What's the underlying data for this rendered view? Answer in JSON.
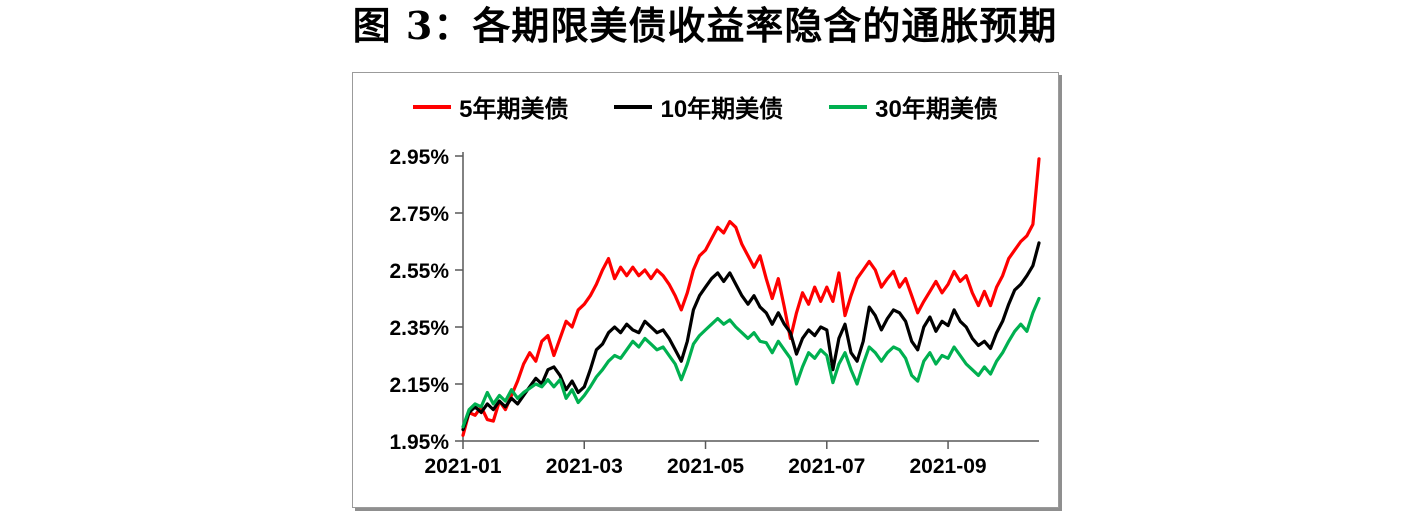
{
  "page": {
    "title": "图 3：各期限美债收益率隐含的通胀预期"
  },
  "chart_data": {
    "type": "line",
    "title": "图 3：各期限美债收益率隐含的通胀预期",
    "xlabel": "",
    "ylabel": "",
    "grid": false,
    "legend_position": "top-center",
    "axis_color": "#595959",
    "ylim": [
      1.95,
      2.95
    ],
    "y_tick_values": [
      1.95,
      2.15,
      2.35,
      2.55,
      2.75,
      2.95
    ],
    "y_tick_labels": [
      "1.95%",
      "2.15%",
      "2.35%",
      "2.55%",
      "2.75%",
      "2.95%"
    ],
    "x_months_span": 9.5,
    "x_ticks": [
      {
        "month": 0,
        "label": "2021-01"
      },
      {
        "month": 2,
        "label": "2021-03"
      },
      {
        "month": 4,
        "label": "2021-05"
      },
      {
        "month": 6,
        "label": "2021-07"
      },
      {
        "month": 8,
        "label": "2021-09"
      }
    ],
    "series": [
      {
        "id": "5y",
        "name": "5年期美债",
        "color": "#FF0000",
        "values": [
          1.97,
          2.05,
          2.04,
          2.07,
          2.025,
          2.02,
          2.09,
          2.06,
          2.11,
          2.16,
          2.22,
          2.26,
          2.23,
          2.3,
          2.32,
          2.25,
          2.31,
          2.37,
          2.35,
          2.41,
          2.43,
          2.46,
          2.5,
          2.55,
          2.59,
          2.52,
          2.56,
          2.53,
          2.56,
          2.53,
          2.55,
          2.52,
          2.55,
          2.53,
          2.5,
          2.46,
          2.41,
          2.47,
          2.55,
          2.6,
          2.62,
          2.66,
          2.7,
          2.68,
          2.72,
          2.7,
          2.64,
          2.6,
          2.56,
          2.6,
          2.52,
          2.45,
          2.52,
          2.42,
          2.31,
          2.4,
          2.47,
          2.43,
          2.49,
          2.44,
          2.49,
          2.44,
          2.54,
          2.39,
          2.46,
          2.52,
          2.55,
          2.58,
          2.55,
          2.49,
          2.52,
          2.545,
          2.49,
          2.52,
          2.46,
          2.4,
          2.44,
          2.475,
          2.51,
          2.47,
          2.5,
          2.545,
          2.51,
          2.53,
          2.47,
          2.425,
          2.475,
          2.425,
          2.49,
          2.53,
          2.59,
          2.62,
          2.65,
          2.67,
          2.71,
          2.94
        ]
      },
      {
        "id": "10y",
        "name": "10年期美债",
        "color": "#000000",
        "values": [
          1.99,
          2.05,
          2.07,
          2.05,
          2.08,
          2.06,
          2.09,
          2.07,
          2.1,
          2.08,
          2.11,
          2.14,
          2.17,
          2.15,
          2.2,
          2.21,
          2.18,
          2.13,
          2.16,
          2.12,
          2.14,
          2.2,
          2.27,
          2.29,
          2.33,
          2.35,
          2.33,
          2.36,
          2.34,
          2.33,
          2.37,
          2.35,
          2.33,
          2.34,
          2.31,
          2.27,
          2.23,
          2.3,
          2.41,
          2.46,
          2.49,
          2.52,
          2.54,
          2.51,
          2.54,
          2.5,
          2.46,
          2.43,
          2.46,
          2.42,
          2.4,
          2.36,
          2.4,
          2.36,
          2.33,
          2.255,
          2.31,
          2.34,
          2.32,
          2.35,
          2.34,
          2.2,
          2.31,
          2.36,
          2.26,
          2.23,
          2.3,
          2.42,
          2.39,
          2.34,
          2.38,
          2.41,
          2.4,
          2.37,
          2.3,
          2.27,
          2.35,
          2.385,
          2.335,
          2.37,
          2.355,
          2.41,
          2.37,
          2.35,
          2.31,
          2.285,
          2.3,
          2.275,
          2.33,
          2.37,
          2.43,
          2.48,
          2.5,
          2.53,
          2.565,
          2.645
        ]
      },
      {
        "id": "30y",
        "name": "30年期美债",
        "color": "#00B050",
        "values": [
          2.0,
          2.06,
          2.08,
          2.07,
          2.12,
          2.08,
          2.11,
          2.09,
          2.13,
          2.1,
          2.12,
          2.135,
          2.15,
          2.14,
          2.165,
          2.14,
          2.165,
          2.1,
          2.13,
          2.085,
          2.11,
          2.14,
          2.175,
          2.2,
          2.23,
          2.25,
          2.24,
          2.27,
          2.3,
          2.28,
          2.31,
          2.29,
          2.27,
          2.28,
          2.25,
          2.22,
          2.165,
          2.22,
          2.29,
          2.32,
          2.34,
          2.36,
          2.38,
          2.36,
          2.375,
          2.35,
          2.33,
          2.31,
          2.33,
          2.3,
          2.295,
          2.26,
          2.3,
          2.27,
          2.24,
          2.15,
          2.21,
          2.26,
          2.24,
          2.27,
          2.25,
          2.155,
          2.22,
          2.26,
          2.2,
          2.15,
          2.22,
          2.28,
          2.26,
          2.23,
          2.26,
          2.28,
          2.27,
          2.24,
          2.18,
          2.16,
          2.23,
          2.26,
          2.22,
          2.25,
          2.24,
          2.28,
          2.25,
          2.22,
          2.2,
          2.18,
          2.21,
          2.185,
          2.23,
          2.26,
          2.3,
          2.335,
          2.36,
          2.335,
          2.4,
          2.45
        ]
      }
    ]
  }
}
